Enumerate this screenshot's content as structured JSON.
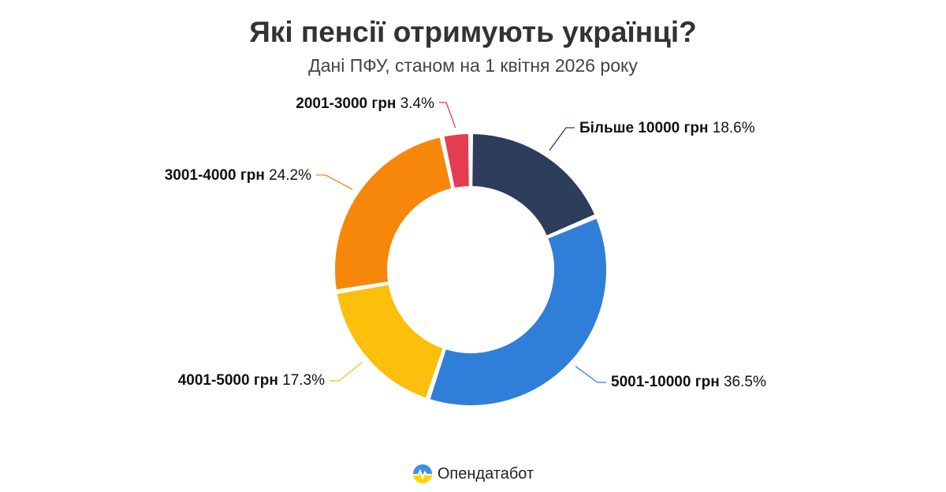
{
  "header": {
    "title": "Які пенсії отримують українці?",
    "subtitle": "Дані ПФУ, станом на 1 квітня 2026 року"
  },
  "chart_data": {
    "type": "pie",
    "categories": [
      "Більше 10000 грн",
      "5001-10000 грн",
      "4001-5000 грн",
      "3001-4000 грн",
      "2001-3000 грн"
    ],
    "values": [
      18.6,
      36.5,
      17.3,
      24.2,
      3.4
    ],
    "value_labels": [
      "18.6%",
      "36.5%",
      "17.3%",
      "24.2%",
      "3.4%"
    ],
    "colors": [
      "#2e3d5c",
      "#2f7fd9",
      "#fbbf0c",
      "#f7870a",
      "#e43d4f"
    ],
    "donut": true
  },
  "brand": {
    "name": "Опендатабот",
    "icon": "opendatabot-logo-icon"
  }
}
